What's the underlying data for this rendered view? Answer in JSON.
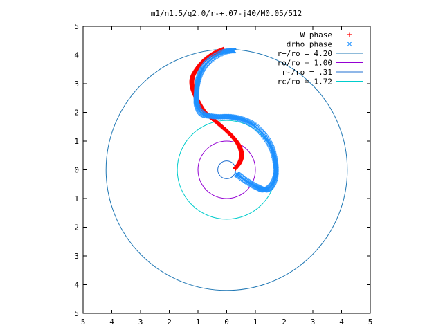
{
  "chart_data": {
    "type": "scatter",
    "title": "m1/n1.5/q2.0/r-+.07-j40/M0.05/512",
    "xlim": [
      -5,
      5
    ],
    "ylim": [
      -5,
      5
    ],
    "x_ticks": [
      -5,
      -4,
      -3,
      -2,
      -1,
      0,
      1,
      2,
      3,
      4,
      5
    ],
    "y_ticks": [
      -5,
      -4,
      -3,
      -2,
      -1,
      0,
      1,
      2,
      3,
      4,
      5
    ],
    "x_tick_labels": [
      "5",
      "4",
      "3",
      "2",
      "1",
      "0",
      "1",
      "2",
      "3",
      "4",
      "5"
    ],
    "y_tick_labels": [
      "5",
      "4",
      "3",
      "2",
      "1",
      "0",
      "1",
      "2",
      "3",
      "4",
      "5"
    ],
    "grid": false,
    "legend_position": "top-right",
    "series": [
      {
        "name": "W phase",
        "marker": "+",
        "color": "#ff0000",
        "points": [
          [
            0.3,
            0.05
          ],
          [
            0.45,
            0.25
          ],
          [
            0.52,
            0.5
          ],
          [
            0.45,
            0.8
          ],
          [
            0.25,
            1.1
          ],
          [
            -0.05,
            1.4
          ],
          [
            -0.4,
            1.7
          ],
          [
            -0.75,
            2.0
          ],
          [
            -0.95,
            2.3
          ],
          [
            -1.1,
            2.6
          ],
          [
            -1.2,
            2.9
          ],
          [
            -1.2,
            3.2
          ],
          [
            -1.05,
            3.5
          ],
          [
            -0.8,
            3.8
          ],
          [
            -0.45,
            4.05
          ],
          [
            -0.1,
            4.2
          ]
        ]
      },
      {
        "name": "drho phase",
        "marker": "x",
        "color": "#1e90ff",
        "points": [
          [
            0.35,
            -0.15
          ],
          [
            0.7,
            -0.4
          ],
          [
            1.05,
            -0.6
          ],
          [
            1.35,
            -0.7
          ],
          [
            1.6,
            -0.5
          ],
          [
            1.72,
            -0.1
          ],
          [
            1.68,
            0.35
          ],
          [
            1.55,
            0.8
          ],
          [
            1.3,
            1.2
          ],
          [
            0.95,
            1.55
          ],
          [
            0.55,
            1.75
          ],
          [
            0.1,
            1.85
          ],
          [
            -0.4,
            1.85
          ],
          [
            -0.85,
            1.95
          ],
          [
            -1.05,
            2.3
          ],
          [
            -1.05,
            2.7
          ],
          [
            -1.0,
            3.1
          ],
          [
            -0.85,
            3.5
          ],
          [
            -0.55,
            3.85
          ],
          [
            -0.1,
            4.1
          ],
          [
            0.25,
            4.15
          ]
        ]
      },
      {
        "name": "r+/ro = 4.20",
        "type": "circle",
        "radius": 4.2,
        "color": "#1f77b4"
      },
      {
        "name": "ro/ro = 1.00",
        "type": "circle",
        "radius": 1.0,
        "color": "#9400d3"
      },
      {
        "name": "r-/ro = .31",
        "type": "circle",
        "radius": 0.31,
        "color": "#1f6fd0"
      },
      {
        "name": "rc/ro = 1.72",
        "type": "circle",
        "radius": 1.72,
        "color": "#00cccc"
      }
    ]
  }
}
